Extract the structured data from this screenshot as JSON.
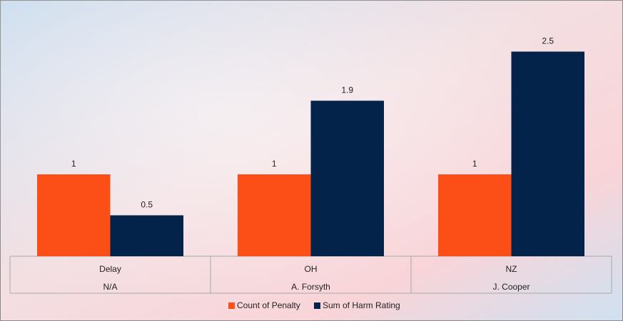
{
  "chart_data": {
    "type": "bar",
    "categories": [
      "Delay",
      "OH",
      "NZ"
    ],
    "subcategories": [
      "N/A",
      "A. Forsyth",
      "J. Cooper"
    ],
    "series": [
      {
        "name": "Count of Penalty",
        "color": "#fc4f17",
        "values": [
          1,
          1,
          1
        ]
      },
      {
        "name": "Sum of Harm Rating",
        "color": "#03234a",
        "values": [
          0.5,
          1.9,
          2.5
        ]
      }
    ]
  }
}
